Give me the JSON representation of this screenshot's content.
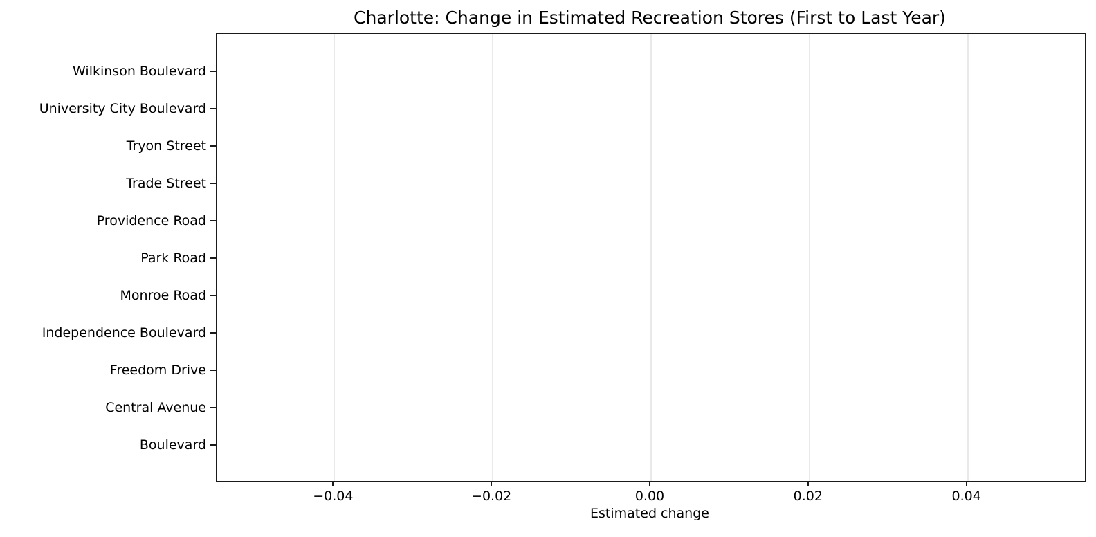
{
  "chart_data": {
    "type": "bar",
    "orientation": "horizontal",
    "title": "Charlotte: Change in Estimated Recreation Stores (First to Last Year)",
    "xlabel": "Estimated change",
    "ylabel": "",
    "categories": [
      "Wilkinson Boulevard",
      "University City Boulevard",
      "Tryon Street",
      "Trade Street",
      "Providence Road",
      "Park Road",
      "Monroe Road",
      "Independence Boulevard",
      "Freedom Drive",
      "Central Avenue",
      "Boulevard"
    ],
    "values": [
      0,
      0,
      0,
      0,
      0,
      0,
      0,
      0,
      0,
      0,
      0
    ],
    "x_ticks": [
      -0.04,
      -0.02,
      0.0,
      0.02,
      0.04
    ],
    "x_tick_labels": [
      "−0.04",
      "−0.02",
      "0.00",
      "0.02",
      "0.04"
    ],
    "xlim": [
      -0.0548,
      0.0548
    ],
    "grid": "vertical",
    "legend": null,
    "colors": {
      "text": "#000000",
      "spine": "#1a1a1a",
      "gridline": "#e9e9e9",
      "background": "#ffffff"
    }
  }
}
